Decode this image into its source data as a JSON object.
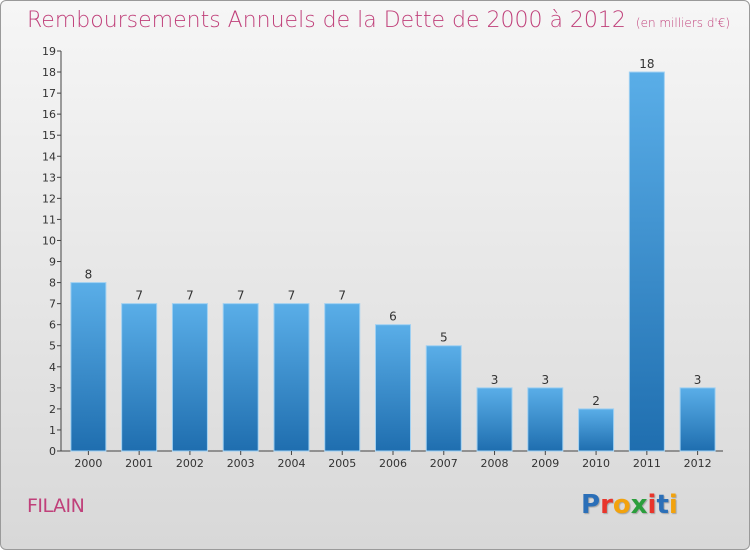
{
  "chart_data": {
    "type": "bar",
    "title": "Remboursements Annuels de la Dette de 2000 à 2012",
    "unit_note": "(en milliers d'€)",
    "categories": [
      "2000",
      "2001",
      "2002",
      "2003",
      "2004",
      "2005",
      "2006",
      "2007",
      "2008",
      "2009",
      "2010",
      "2011",
      "2012"
    ],
    "values": [
      8,
      7,
      7,
      7,
      7,
      7,
      6,
      5,
      3,
      3,
      2,
      18,
      3
    ],
    "ylim": [
      0,
      19
    ],
    "yticks": [
      "0",
      "1",
      "2",
      "3",
      "4",
      "5",
      "6",
      "7",
      "8",
      "9",
      "10",
      "11",
      "12",
      "13",
      "14",
      "15",
      "16",
      "17",
      "18",
      "19"
    ],
    "grid": false,
    "bar_color_top": "#5aaee8",
    "bar_color_bottom": "#1f6eaf"
  },
  "commune": "FILAIN",
  "logo": {
    "letters": [
      "P",
      "r",
      "o",
      "x",
      "i",
      "t",
      "i"
    ],
    "colors": [
      "#2b6fb8",
      "#e8352b",
      "#f2a20d",
      "#2b9e3c",
      "#e8352b",
      "#2b6fb8",
      "#f2a20d"
    ]
  }
}
